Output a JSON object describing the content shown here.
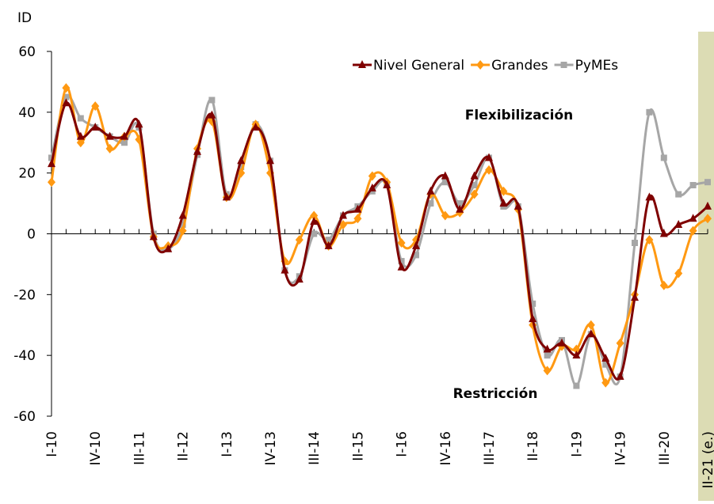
{
  "chart_data": {
    "type": "line",
    "y_label": "ID",
    "categories": [
      "I-10",
      null,
      null,
      "IV-10",
      null,
      null,
      "III-11",
      null,
      null,
      "II-12",
      null,
      null,
      "I-13",
      null,
      null,
      "IV-13",
      null,
      null,
      "III-14",
      null,
      null,
      "II-15",
      null,
      null,
      "I-16",
      null,
      null,
      "IV-16",
      null,
      null,
      "III-17",
      null,
      null,
      "II-18",
      null,
      null,
      "I-19",
      null,
      null,
      "IV-19",
      null,
      null,
      "III-20",
      null,
      null,
      "II-21 (e.)"
    ],
    "series": [
      {
        "name": "Nivel General",
        "color": "#7f0000",
        "marker": "triangle",
        "values": [
          23,
          43,
          32,
          35,
          32,
          32,
          36,
          -1,
          -5,
          6,
          27,
          39,
          12,
          24,
          35,
          24,
          -12,
          -15,
          4,
          -4,
          6,
          8,
          15,
          16,
          -11,
          -4,
          14,
          19,
          8,
          19,
          25,
          10,
          9,
          -28,
          -38,
          -36,
          -40,
          -33,
          -41,
          -47,
          -21,
          12,
          0,
          3,
          5,
          9
        ]
      },
      {
        "name": "Grandes",
        "color": "#ff9912",
        "marker": "diamond",
        "values": [
          17,
          48,
          30,
          42,
          28,
          32,
          31,
          -1,
          -4,
          1,
          28,
          37,
          12,
          20,
          36,
          20,
          -9,
          -2,
          6,
          -4,
          3,
          5,
          19,
          17,
          -3,
          -2,
          13,
          6,
          7,
          13,
          21,
          14,
          8,
          -30,
          -45,
          -37,
          -38,
          -30,
          -49,
          -36,
          -20,
          -2,
          -17,
          -13,
          1,
          5
        ]
      },
      {
        "name": "PyMEs",
        "color": "#a6a6a6",
        "marker": "square",
        "values": [
          25,
          45,
          38,
          35,
          32,
          30,
          35,
          0,
          -5,
          3,
          26,
          44,
          13,
          22,
          36,
          24,
          -12,
          -14,
          0,
          -2,
          6,
          9,
          14,
          16,
          -9,
          -7,
          10,
          17,
          10,
          16,
          25,
          9,
          9,
          -23,
          -40,
          -35,
          -50,
          -33,
          -43,
          -47,
          -3,
          40,
          25,
          13,
          16,
          17
        ]
      }
    ],
    "ylim": [
      -60,
      60
    ],
    "yticks": [
      -60,
      -40,
      -20,
      0,
      20,
      40,
      60
    ],
    "annotations": [
      "Flexibilización",
      "Restricción"
    ],
    "legend": "upper right"
  }
}
